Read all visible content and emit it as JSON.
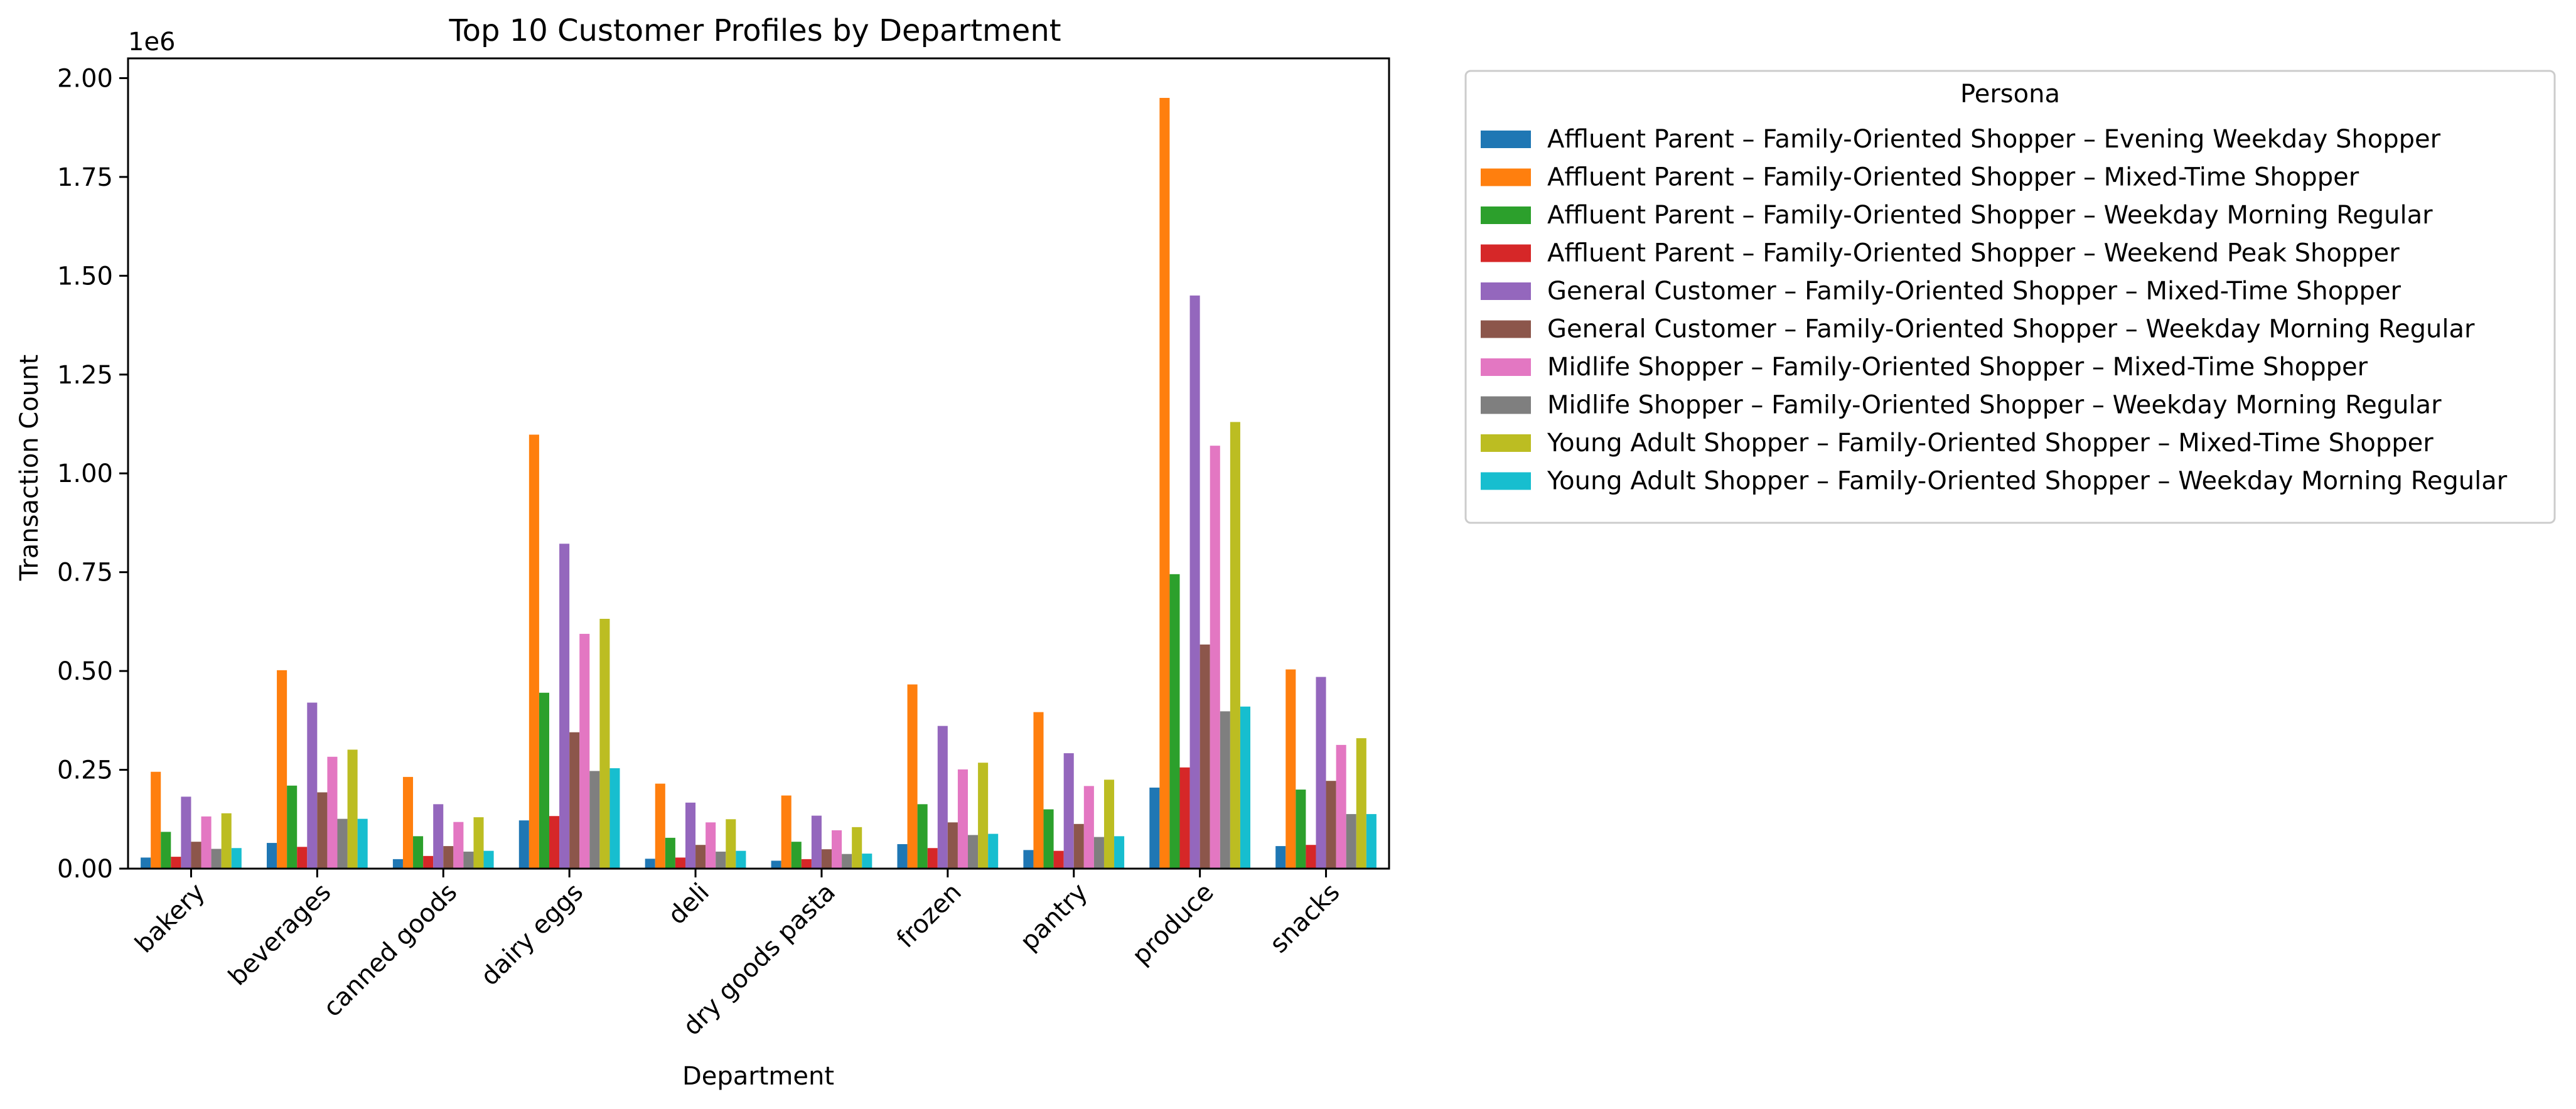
{
  "chart_data": {
    "type": "bar",
    "title": "Top 10 Customer Profiles by Department",
    "xlabel": "Department",
    "ylabel": "Transaction Count",
    "y_scale_note": "1e6",
    "ylim": [
      0,
      2050000
    ],
    "y_ticks": [
      0,
      250000,
      500000,
      750000,
      1000000,
      1250000,
      1500000,
      1750000,
      2000000
    ],
    "y_tick_labels": [
      "0.00",
      "0.25",
      "0.50",
      "0.75",
      "1.00",
      "1.25",
      "1.50",
      "1.75",
      "2.00"
    ],
    "grid": false,
    "legend_position": "outside-right",
    "legend_title": "Persona",
    "categories": [
      "bakery",
      "beverages",
      "canned goods",
      "dairy eggs",
      "deli",
      "dry goods pasta",
      "frozen",
      "pantry",
      "produce",
      "snacks"
    ],
    "series": [
      {
        "name": "Affluent Parent – Family-Oriented Shopper – Evening Weekday Shopper",
        "color": "#1f77b4",
        "values": [
          28000,
          65000,
          24000,
          122000,
          25000,
          20000,
          62000,
          47000,
          205000,
          57000
        ]
      },
      {
        "name": "Affluent Parent – Family-Oriented Shopper – Mixed-Time Shopper",
        "color": "#ff7f0e",
        "values": [
          245000,
          502000,
          232000,
          1098000,
          215000,
          185000,
          466000,
          396000,
          1950000,
          504000
        ]
      },
      {
        "name": "Affluent Parent – Family-Oriented Shopper – Weekday Morning Regular",
        "color": "#2ca02c",
        "values": [
          93000,
          210000,
          82000,
          445000,
          78000,
          68000,
          163000,
          150000,
          745000,
          200000
        ]
      },
      {
        "name": "Affluent Parent – Family-Oriented Shopper – Weekend Peak Shopper",
        "color": "#d62728",
        "values": [
          30000,
          55000,
          32000,
          133000,
          28000,
          24000,
          52000,
          45000,
          256000,
          60000
        ]
      },
      {
        "name": "General Customer – Family-Oriented Shopper – Mixed-Time Shopper",
        "color": "#9467bd",
        "values": [
          182000,
          420000,
          163000,
          822000,
          167000,
          134000,
          361000,
          292000,
          1450000,
          485000
        ]
      },
      {
        "name": "General Customer – Family-Oriented Shopper – Weekday Morning Regular",
        "color": "#8c564b",
        "values": [
          68000,
          193000,
          57000,
          345000,
          60000,
          49000,
          117000,
          113000,
          567000,
          222000
        ]
      },
      {
        "name": "Midlife Shopper – Family-Oriented Shopper – Mixed-Time Shopper",
        "color": "#e377c2",
        "values": [
          132000,
          283000,
          118000,
          594000,
          117000,
          97000,
          251000,
          209000,
          1070000,
          313000
        ]
      },
      {
        "name": "Midlife Shopper – Family-Oriented Shopper – Weekday Morning Regular",
        "color": "#7f7f7f",
        "values": [
          50000,
          126000,
          43000,
          247000,
          43000,
          37000,
          85000,
          80000,
          398000,
          138000
        ]
      },
      {
        "name": "Young Adult Shopper – Family-Oriented Shopper – Mixed-Time Shopper",
        "color": "#bcbd22",
        "values": [
          140000,
          301000,
          130000,
          632000,
          125000,
          105000,
          268000,
          225000,
          1130000,
          330000
        ]
      },
      {
        "name": "Young Adult Shopper – Family-Oriented Shopper – Weekday Morning Regular",
        "color": "#17becf",
        "values": [
          52000,
          126000,
          45000,
          254000,
          45000,
          38000,
          88000,
          82000,
          410000,
          138000
        ]
      }
    ]
  }
}
